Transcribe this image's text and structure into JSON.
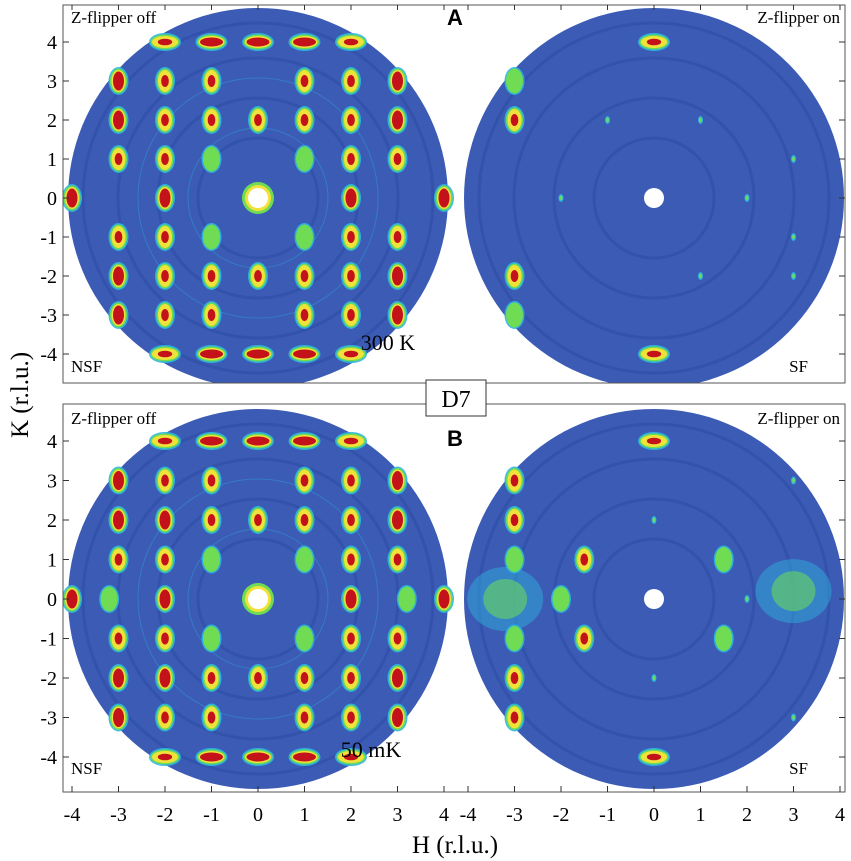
{
  "figure": {
    "instrument_label": "D7",
    "colors": {
      "background_intensity": "#3b5bb5",
      "ring_dark": "#2f4ca6",
      "low_intensity": "#2fb6e0",
      "mid_intensity": "#6fdc54",
      "high_intensity": "#f0e23a",
      "peak_intensity": "#c4121a",
      "hole": "#ffffff"
    }
  },
  "chart_data": [
    {
      "type": "heatmap",
      "panel": "A",
      "x_range": [
        -4.3,
        4.2
      ],
      "y_range": [
        -4.8,
        4.8
      ],
      "xlabel": "H (r.l.u.)",
      "ylabel": "K (r.l.u.)",
      "x_ticks": [
        "-4",
        "-3",
        "-2",
        "-1",
        "0",
        "1",
        "2",
        "3",
        "4"
      ],
      "y_ticks": [
        "4",
        "3",
        "2",
        "1",
        "0",
        "-1",
        "-2",
        "-3",
        "-4"
      ],
      "temperature_label": "300 K",
      "maps": [
        {
          "side": "left",
          "top_label": "Z-flipper off",
          "channel_label": "NSF",
          "peaks": [
            {
              "h": 0,
              "k": 4,
              "level": "peak"
            },
            {
              "h": -1,
              "k": 4,
              "level": "peak"
            },
            {
              "h": 1,
              "k": 4,
              "level": "peak"
            },
            {
              "h": -2,
              "k": 4,
              "level": "high"
            },
            {
              "h": 2,
              "k": 4,
              "level": "high"
            },
            {
              "h": 0,
              "k": -4,
              "level": "peak"
            },
            {
              "h": -1,
              "k": -4,
              "level": "peak"
            },
            {
              "h": 1,
              "k": -4,
              "level": "peak"
            },
            {
              "h": -2,
              "k": -4,
              "level": "high"
            },
            {
              "h": 2,
              "k": -4,
              "level": "high"
            },
            {
              "h": -3,
              "k": 3,
              "level": "peak"
            },
            {
              "h": 3,
              "k": 3,
              "level": "peak"
            },
            {
              "h": -3,
              "k": 2,
              "level": "peak"
            },
            {
              "h": 3,
              "k": 2,
              "level": "peak"
            },
            {
              "h": -3,
              "k": -2,
              "level": "peak"
            },
            {
              "h": 3,
              "k": -2,
              "level": "peak"
            },
            {
              "h": -3,
              "k": -3,
              "level": "peak"
            },
            {
              "h": 3,
              "k": -3,
              "level": "peak"
            },
            {
              "h": -4,
              "k": 0,
              "level": "peak"
            },
            {
              "h": 4,
              "k": 0,
              "level": "peak"
            },
            {
              "h": -3,
              "k": 1,
              "level": "high"
            },
            {
              "h": 3,
              "k": 1,
              "level": "high"
            },
            {
              "h": -3,
              "k": -1,
              "level": "high"
            },
            {
              "h": 3,
              "k": -1,
              "level": "high"
            },
            {
              "h": -2,
              "k": 0,
              "level": "peak"
            },
            {
              "h": 2,
              "k": 0,
              "level": "peak"
            },
            {
              "h": -2,
              "k": 3,
              "level": "high"
            },
            {
              "h": 2,
              "k": 3,
              "level": "high"
            },
            {
              "h": -2,
              "k": -3,
              "level": "high"
            },
            {
              "h": 2,
              "k": -3,
              "level": "high"
            },
            {
              "h": -1,
              "k": 3,
              "level": "high"
            },
            {
              "h": 1,
              "k": 3,
              "level": "high"
            },
            {
              "h": -1,
              "k": -3,
              "level": "high"
            },
            {
              "h": 1,
              "k": -3,
              "level": "high"
            },
            {
              "h": -2,
              "k": 2,
              "level": "high"
            },
            {
              "h": 2,
              "k": 2,
              "level": "high"
            },
            {
              "h": -2,
              "k": -2,
              "level": "high"
            },
            {
              "h": 2,
              "k": -2,
              "level": "high"
            },
            {
              "h": -1,
              "k": 2,
              "level": "high"
            },
            {
              "h": 1,
              "k": 2,
              "level": "high"
            },
            {
              "h": -1,
              "k": -2,
              "level": "high"
            },
            {
              "h": 1,
              "k": -2,
              "level": "high"
            },
            {
              "h": 0,
              "k": 2,
              "level": "high"
            },
            {
              "h": 0,
              "k": -2,
              "level": "high"
            },
            {
              "h": -1,
              "k": 1,
              "level": "mid"
            },
            {
              "h": 1,
              "k": 1,
              "level": "mid"
            },
            {
              "h": -1,
              "k": -1,
              "level": "mid"
            },
            {
              "h": 1,
              "k": -1,
              "level": "mid"
            },
            {
              "h": -2,
              "k": 1,
              "level": "high"
            },
            {
              "h": 2,
              "k": 1,
              "level": "high"
            },
            {
              "h": -2,
              "k": -1,
              "level": "high"
            },
            {
              "h": 2,
              "k": -1,
              "level": "high"
            }
          ]
        },
        {
          "side": "right",
          "top_label": "Z-flipper on",
          "channel_label": "SF",
          "peaks": [
            {
              "h": 0,
              "k": 4,
              "level": "high"
            },
            {
              "h": 0,
              "k": -4,
              "level": "high"
            },
            {
              "h": -3,
              "k": 2,
              "level": "high"
            },
            {
              "h": -3,
              "k": 3,
              "level": "mid"
            },
            {
              "h": -3,
              "k": -2,
              "level": "high"
            },
            {
              "h": -3,
              "k": -3,
              "level": "mid"
            },
            {
              "h": 1,
              "k": 2,
              "level": "low"
            },
            {
              "h": -1,
              "k": 2,
              "level": "low"
            },
            {
              "h": -2,
              "k": 0,
              "level": "low"
            },
            {
              "h": 2,
              "k": 0,
              "level": "low"
            },
            {
              "h": 3,
              "k": 1,
              "level": "low"
            },
            {
              "h": 3,
              "k": -1,
              "level": "low"
            },
            {
              "h": 1,
              "k": -2,
              "level": "low"
            },
            {
              "h": 3,
              "k": -2,
              "level": "low"
            }
          ]
        }
      ]
    },
    {
      "type": "heatmap",
      "panel": "B",
      "x_range": [
        -4.3,
        4.2
      ],
      "y_range": [
        -4.8,
        4.8
      ],
      "xlabel": "H (r.l.u.)",
      "ylabel": "K (r.l.u.)",
      "x_ticks": [
        "-4",
        "-3",
        "-2",
        "-1",
        "0",
        "1",
        "2",
        "3",
        "4"
      ],
      "y_ticks": [
        "4",
        "3",
        "2",
        "1",
        "0",
        "-1",
        "-2",
        "-3",
        "-4"
      ],
      "temperature_label": "50 mK",
      "maps": [
        {
          "side": "left",
          "top_label": "Z-flipper off",
          "channel_label": "NSF",
          "peaks": [
            {
              "h": 0,
              "k": 4,
              "level": "peak"
            },
            {
              "h": -1,
              "k": 4,
              "level": "peak"
            },
            {
              "h": 1,
              "k": 4,
              "level": "peak"
            },
            {
              "h": -2,
              "k": 4,
              "level": "high"
            },
            {
              "h": 2,
              "k": 4,
              "level": "high"
            },
            {
              "h": 0,
              "k": -4,
              "level": "peak"
            },
            {
              "h": -1,
              "k": -4,
              "level": "peak"
            },
            {
              "h": 1,
              "k": -4,
              "level": "peak"
            },
            {
              "h": -2,
              "k": -4,
              "level": "high"
            },
            {
              "h": 2,
              "k": -4,
              "level": "high"
            },
            {
              "h": -3,
              "k": 3,
              "level": "peak"
            },
            {
              "h": 3,
              "k": 3,
              "level": "peak"
            },
            {
              "h": -3,
              "k": 2,
              "level": "peak"
            },
            {
              "h": 3,
              "k": 2,
              "level": "peak"
            },
            {
              "h": -3,
              "k": -2,
              "level": "peak"
            },
            {
              "h": 3,
              "k": -2,
              "level": "peak"
            },
            {
              "h": -3,
              "k": -3,
              "level": "peak"
            },
            {
              "h": 3,
              "k": -3,
              "level": "peak"
            },
            {
              "h": -4,
              "k": 0,
              "level": "peak"
            },
            {
              "h": 4,
              "k": 0,
              "level": "peak"
            },
            {
              "h": -3,
              "k": 1,
              "level": "high"
            },
            {
              "h": 3,
              "k": 1,
              "level": "high"
            },
            {
              "h": -3,
              "k": -1,
              "level": "high"
            },
            {
              "h": 3,
              "k": -1,
              "level": "high"
            },
            {
              "h": -2,
              "k": 0,
              "level": "peak"
            },
            {
              "h": 2,
              "k": 0,
              "level": "peak"
            },
            {
              "h": -2,
              "k": 3,
              "level": "high"
            },
            {
              "h": 2,
              "k": 3,
              "level": "high"
            },
            {
              "h": -2,
              "k": -3,
              "level": "high"
            },
            {
              "h": 2,
              "k": -3,
              "level": "high"
            },
            {
              "h": -1,
              "k": 3,
              "level": "high"
            },
            {
              "h": 1,
              "k": 3,
              "level": "high"
            },
            {
              "h": -1,
              "k": -3,
              "level": "high"
            },
            {
              "h": 1,
              "k": -3,
              "level": "high"
            },
            {
              "h": -2,
              "k": 2,
              "level": "peak"
            },
            {
              "h": 2,
              "k": 2,
              "level": "high"
            },
            {
              "h": -2,
              "k": -2,
              "level": "peak"
            },
            {
              "h": 2,
              "k": -2,
              "level": "high"
            },
            {
              "h": -1,
              "k": 2,
              "level": "high"
            },
            {
              "h": 1,
              "k": 2,
              "level": "high"
            },
            {
              "h": -1,
              "k": -2,
              "level": "high"
            },
            {
              "h": 1,
              "k": -2,
              "level": "high"
            },
            {
              "h": 0,
              "k": 2,
              "level": "high"
            },
            {
              "h": 0,
              "k": -2,
              "level": "high"
            },
            {
              "h": -1,
              "k": 1,
              "level": "mid"
            },
            {
              "h": 1,
              "k": 1,
              "level": "mid"
            },
            {
              "h": -1,
              "k": -1,
              "level": "mid"
            },
            {
              "h": 1,
              "k": -1,
              "level": "mid"
            },
            {
              "h": -2,
              "k": 1,
              "level": "high"
            },
            {
              "h": 2,
              "k": 1,
              "level": "high"
            },
            {
              "h": -2,
              "k": -1,
              "level": "high"
            },
            {
              "h": 2,
              "k": -1,
              "level": "high"
            },
            {
              "h": -3.2,
              "k": 0,
              "level": "mid"
            },
            {
              "h": 3.2,
              "k": 0,
              "level": "mid"
            }
          ]
        },
        {
          "side": "right",
          "top_label": "Z-flipper on",
          "channel_label": "SF",
          "diffuse": [
            {
              "h": -3.2,
              "k": 0,
              "level": "mid"
            },
            {
              "h": 3.0,
              "k": 0.2,
              "level": "mid"
            }
          ],
          "peaks": [
            {
              "h": 0,
              "k": 4,
              "level": "high"
            },
            {
              "h": 0,
              "k": -4,
              "level": "high"
            },
            {
              "h": -3,
              "k": 2,
              "level": "high"
            },
            {
              "h": -3,
              "k": 3,
              "level": "high"
            },
            {
              "h": -3,
              "k": -2,
              "level": "high"
            },
            {
              "h": -3,
              "k": -3,
              "level": "high"
            },
            {
              "h": -3,
              "k": 1,
              "level": "mid"
            },
            {
              "h": -3,
              "k": -1,
              "level": "mid"
            },
            {
              "h": -2,
              "k": 0,
              "level": "mid"
            },
            {
              "h": -1.5,
              "k": -1,
              "level": "high"
            },
            {
              "h": -1.5,
              "k": 1,
              "level": "high"
            },
            {
              "h": 1.5,
              "k": 1,
              "level": "mid"
            },
            {
              "h": 1.5,
              "k": -1,
              "level": "mid"
            },
            {
              "h": 3,
              "k": 3,
              "level": "low"
            },
            {
              "h": 3,
              "k": -3,
              "level": "low"
            },
            {
              "h": 0,
              "k": 2,
              "level": "low"
            },
            {
              "h": 0,
              "k": -2,
              "level": "low"
            },
            {
              "h": 2,
              "k": 0,
              "level": "low"
            }
          ]
        }
      ]
    }
  ]
}
